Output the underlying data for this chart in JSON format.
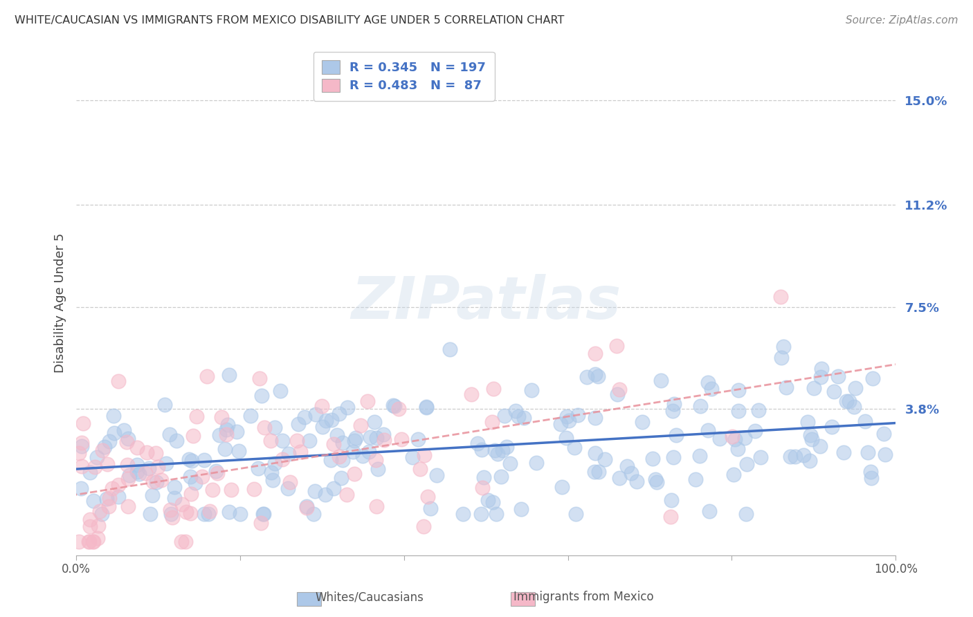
{
  "title": "WHITE/CAUCASIAN VS IMMIGRANTS FROM MEXICO DISABILITY AGE UNDER 5 CORRELATION CHART",
  "source": "Source: ZipAtlas.com",
  "ylabel": "Disability Age Under 5",
  "ytick_labels": [
    "15.0%",
    "11.2%",
    "7.5%",
    "3.8%"
  ],
  "ytick_values": [
    0.15,
    0.112,
    0.075,
    0.038
  ],
  "xlim": [
    0.0,
    1.0
  ],
  "ylim": [
    -0.015,
    0.168
  ],
  "legend_blue_label": "Whites/Caucasians",
  "legend_pink_label": "Immigrants from Mexico",
  "R_blue": 0.345,
  "N_blue": 197,
  "R_pink": 0.483,
  "N_pink": 87,
  "blue_color": "#adc8e8",
  "pink_color": "#f5b8c8",
  "line_blue": "#4472c4",
  "line_pink": "#e8909a",
  "background_color": "#ffffff",
  "seed_blue": 42,
  "seed_pink": 99
}
